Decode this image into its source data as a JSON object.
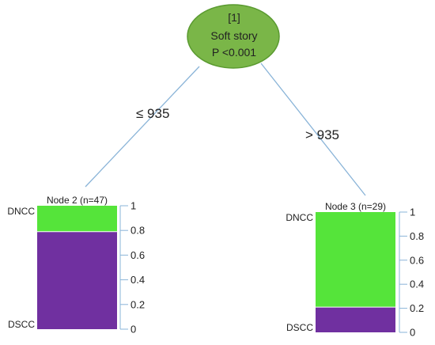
{
  "root": {
    "id_label": "[1]",
    "variable": "Soft story",
    "p_value": "P <0.001",
    "fill_color": "#7ab648",
    "stroke_color": "#5a9a30"
  },
  "edges": {
    "left_label": "≤ 935",
    "right_label": "> 935",
    "line_color": "#8ab4d8"
  },
  "colors": {
    "dncc": "#55e43a",
    "dscc": "#7030a0"
  },
  "chart_data": [
    {
      "type": "bar",
      "title": "Node 2 (n=47)",
      "categories": [
        "DNCC",
        "DSCC"
      ],
      "values": [
        0.21,
        0.79
      ],
      "stacked": true,
      "ylim": [
        0,
        1
      ],
      "yticks": [
        "0",
        "0.2",
        "0.4",
        "0.6",
        "0.8",
        "1"
      ]
    },
    {
      "type": "bar",
      "title": "Node 3 (n=29)",
      "categories": [
        "DNCC",
        "DSCC"
      ],
      "values": [
        0.79,
        0.21
      ],
      "stacked": true,
      "ylim": [
        0,
        1
      ],
      "yticks": [
        "0",
        "0.2",
        "0.4",
        "0.6",
        "0.8",
        "1"
      ]
    }
  ]
}
